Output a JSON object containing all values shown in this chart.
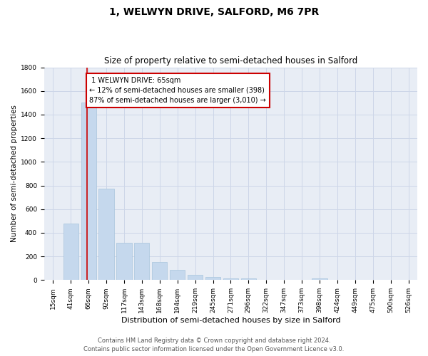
{
  "title": "1, WELWYN DRIVE, SALFORD, M6 7PR",
  "subtitle": "Size of property relative to semi-detached houses in Salford",
  "xlabel": "Distribution of semi-detached houses by size in Salford",
  "ylabel": "Number of semi-detached properties",
  "footer_line1": "Contains HM Land Registry data © Crown copyright and database right 2024.",
  "footer_line2": "Contains public sector information licensed under the Open Government Licence v3.0.",
  "categories": [
    "15sqm",
    "41sqm",
    "66sqm",
    "92sqm",
    "117sqm",
    "143sqm",
    "168sqm",
    "194sqm",
    "219sqm",
    "245sqm",
    "271sqm",
    "296sqm",
    "322sqm",
    "347sqm",
    "373sqm",
    "398sqm",
    "424sqm",
    "449sqm",
    "475sqm",
    "500sqm",
    "526sqm"
  ],
  "values": [
    0,
    478,
    1500,
    775,
    315,
    315,
    155,
    85,
    45,
    28,
    15,
    15,
    0,
    0,
    0,
    15,
    0,
    0,
    0,
    0,
    0
  ],
  "bar_color": "#c5d8ed",
  "bar_edge_color": "#a8c4dc",
  "marker_label": "1 WELWYN DRIVE: 65sqm",
  "marker_pct_smaller": "12% of semi-detached houses are smaller (398)",
  "marker_pct_larger": "87% of semi-detached houses are larger (3,010)",
  "marker_color": "#cc0000",
  "annotation_box_edge_color": "#cc0000",
  "ylim": [
    0,
    1800
  ],
  "yticks": [
    0,
    200,
    400,
    600,
    800,
    1000,
    1200,
    1400,
    1600,
    1800
  ],
  "grid_color": "#cdd6e8",
  "background_color": "#e8edf5",
  "title_fontsize": 10,
  "subtitle_fontsize": 8.5,
  "xlabel_fontsize": 8,
  "ylabel_fontsize": 7.5,
  "tick_fontsize": 6.5,
  "annotation_fontsize": 7,
  "footer_fontsize": 6
}
